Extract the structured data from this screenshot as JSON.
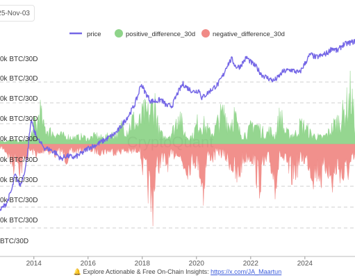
{
  "date_badge": "25-Nov-03",
  "footer": {
    "icon": "bell-icon",
    "text": "Explore Actionable & Free On-Chain Insights:",
    "link": "https://x.com/JA_Maartun"
  },
  "watermark": "CryptoQuant",
  "chart_data": {
    "type": "line",
    "legend_position": "top",
    "grid": "horizontal-dashed",
    "series": [
      {
        "name": "price",
        "kind": "line",
        "color": "#7466e6"
      },
      {
        "name": "positive_difference_30d",
        "kind": "area",
        "color": "#8fd48a"
      },
      {
        "name": "negative_difference_30d",
        "kind": "area",
        "color": "#f08a86"
      }
    ],
    "x_ticks": [
      "2014",
      "2016",
      "2018",
      "2020",
      "2022",
      "2024"
    ],
    "xlim": [
      2012.75,
      2025.85
    ],
    "y_tick_labels": [
      "0k BTC/30D",
      "0k BTC/30D",
      "0k BTC/30D",
      "0k BTC/30D",
      "0k BTC/30D",
      "0k BTC/30D",
      "0k BTC/30D",
      "0k BTC/30D",
      "BTC/30D"
    ],
    "price": {
      "x": [
        2012.75,
        2013.0,
        2013.2,
        2013.3,
        2013.5,
        2013.7,
        2013.85,
        2013.92,
        2014.0,
        2014.2,
        2014.4,
        2014.6,
        2014.8,
        2015.0,
        2015.2,
        2015.5,
        2015.8,
        2016.0,
        2016.3,
        2016.6,
        2016.9,
        2017.1,
        2017.3,
        2017.5,
        2017.7,
        2017.85,
        2017.95,
        2018.1,
        2018.3,
        2018.5,
        2018.7,
        2018.9,
        2019.1,
        2019.3,
        2019.5,
        2019.7,
        2019.9,
        2020.1,
        2020.2,
        2020.4,
        2020.6,
        2020.8,
        2021.0,
        2021.1,
        2021.3,
        2021.45,
        2021.6,
        2021.85,
        2022.0,
        2022.2,
        2022.4,
        2022.6,
        2022.85,
        2023.0,
        2023.2,
        2023.5,
        2023.8,
        2024.0,
        2024.2,
        2024.4,
        2024.6,
        2024.85,
        2025.0,
        2025.2,
        2025.4,
        2025.6,
        2025.8
      ],
      "y": [
        0.12,
        0.17,
        0.26,
        0.35,
        0.28,
        0.4,
        0.62,
        0.7,
        0.63,
        0.56,
        0.52,
        0.51,
        0.49,
        0.45,
        0.47,
        0.46,
        0.49,
        0.52,
        0.54,
        0.57,
        0.6,
        0.63,
        0.68,
        0.73,
        0.79,
        0.86,
        0.93,
        0.88,
        0.82,
        0.82,
        0.83,
        0.79,
        0.79,
        0.87,
        0.93,
        0.9,
        0.88,
        0.89,
        0.84,
        0.87,
        0.9,
        0.93,
        0.99,
        1.04,
        1.09,
        1.04,
        1.04,
        1.1,
        1.07,
        1.04,
        0.99,
        0.97,
        0.95,
        0.97,
        1.01,
        1.02,
        1.0,
        1.06,
        1.12,
        1.1,
        1.11,
        1.13,
        1.16,
        1.14,
        1.18,
        1.19,
        1.2
      ]
    },
    "positive_difference_30d": {
      "x": [
        2013.85,
        2013.95,
        2014.05,
        2014.12,
        2014.2,
        2014.35,
        2014.6,
        2014.9,
        2015.2,
        2015.5,
        2015.8,
        2016.0,
        2016.3,
        2016.45,
        2016.7,
        2016.95,
        2017.1,
        2017.25,
        2017.45,
        2017.65,
        2017.85,
        2018.05,
        2018.2,
        2018.35,
        2018.45,
        2018.6,
        2018.8,
        2019.0,
        2019.2,
        2019.35,
        2019.5,
        2019.65,
        2019.85,
        2020.05,
        2020.3,
        2020.5,
        2020.65,
        2020.85,
        2021.05,
        2021.2,
        2021.4,
        2021.55,
        2021.7,
        2021.9,
        2022.1,
        2022.3,
        2022.55,
        2022.7,
        2022.9,
        2023.1,
        2023.25,
        2023.45,
        2023.65,
        2023.85,
        2024.05,
        2024.25,
        2024.45,
        2024.65,
        2024.8,
        2024.95,
        2025.1,
        2025.3,
        2025.5,
        2025.7,
        2025.85
      ],
      "y": [
        0.05,
        0.22,
        0.35,
        0.25,
        0.6,
        0.28,
        0.2,
        0.15,
        0.12,
        0.1,
        0.12,
        0.08,
        0.14,
        0.1,
        0.12,
        0.16,
        0.14,
        0.3,
        0.22,
        0.4,
        0.3,
        0.5,
        0.48,
        0.55,
        0.72,
        0.22,
        0.1,
        0.15,
        0.26,
        0.58,
        0.22,
        0.12,
        0.12,
        0.35,
        0.3,
        0.18,
        0.2,
        0.42,
        0.52,
        0.3,
        0.48,
        0.22,
        0.15,
        0.18,
        0.35,
        0.26,
        0.15,
        0.22,
        0.12,
        0.5,
        0.2,
        0.15,
        0.16,
        0.32,
        0.25,
        0.15,
        0.12,
        0.1,
        0.15,
        0.22,
        0.32,
        0.4,
        0.55,
        0.85,
        0.3
      ]
    },
    "negative_difference_30d": {
      "x": [
        2012.8,
        2013.0,
        2013.15,
        2013.25,
        2013.35,
        2013.5,
        2013.7,
        2013.85,
        2014.0,
        2014.2,
        2014.4,
        2014.6,
        2014.8,
        2015.0,
        2015.2,
        2015.4,
        2015.6,
        2015.9,
        2016.2,
        2016.5,
        2016.8,
        2017.0,
        2017.3,
        2017.6,
        2017.9,
        2018.0,
        2018.1,
        2018.2,
        2018.35,
        2018.5,
        2018.7,
        2018.9,
        2019.1,
        2019.3,
        2019.5,
        2019.7,
        2019.9,
        2020.1,
        2020.25,
        2020.4,
        2020.6,
        2020.8,
        2021.0,
        2021.2,
        2021.35,
        2021.5,
        2021.7,
        2021.9,
        2022.1,
        2022.3,
        2022.5,
        2022.7,
        2022.9,
        2023.1,
        2023.3,
        2023.5,
        2023.7,
        2023.9,
        2024.1,
        2024.3,
        2024.5,
        2024.65,
        2024.8,
        2025.0,
        2025.2,
        2025.4,
        2025.6,
        2025.8
      ],
      "y": [
        0.05,
        0.12,
        0.25,
        0.32,
        0.18,
        0.36,
        0.22,
        0.1,
        0.12,
        0.18,
        0.08,
        0.12,
        0.15,
        0.1,
        0.22,
        0.12,
        0.1,
        0.08,
        0.1,
        0.12,
        0.1,
        0.12,
        0.1,
        0.12,
        0.08,
        0.3,
        0.45,
        0.55,
        0.95,
        0.4,
        0.22,
        0.3,
        0.18,
        0.12,
        0.3,
        0.35,
        0.22,
        0.32,
        0.68,
        0.15,
        0.2,
        0.12,
        0.16,
        0.25,
        0.35,
        0.55,
        0.25,
        0.18,
        0.22,
        0.58,
        0.3,
        0.25,
        0.55,
        0.15,
        0.32,
        0.45,
        0.35,
        0.2,
        0.25,
        0.45,
        0.38,
        0.52,
        0.28,
        0.6,
        0.3,
        0.5,
        0.38,
        0.25
      ]
    }
  }
}
